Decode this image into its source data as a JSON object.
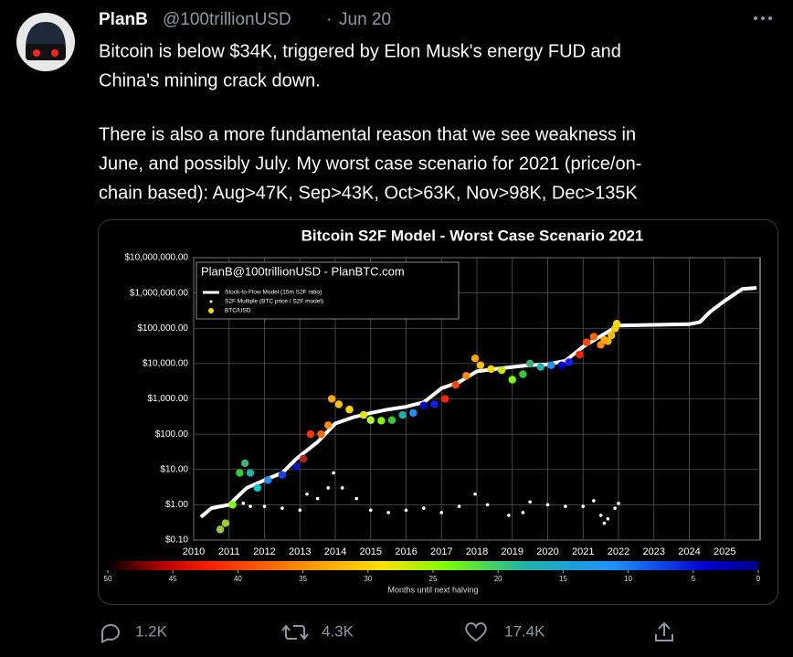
{
  "tweet": {
    "author": "PlanB",
    "handle": "@100trillionUSD",
    "separator": "·",
    "date": "Jun 20",
    "text_lines": [
      "Bitcoin is below $34K, triggered by Elon Musk's energy FUD and",
      "China's mining crack down.",
      "There is also a more fundamental reason that we see weakness in",
      "June, and possibly July. My worst case scenario for 2021 (price/on-",
      "chain based): Aug>47K, Sep>43K, Oct>63K, Nov>98K, Dec>135K"
    ],
    "replies": "1.2K",
    "retweets": "4.3K",
    "likes": "17.4K"
  },
  "chart": {
    "type": "scatter",
    "title": "Bitcoin S2F Model - Worst Case Scenario 2021",
    "watermark": "PlanB@100trillionUSD - PlanBTC.com",
    "log_y": true,
    "grid": true,
    "xlim": [
      2010,
      2026
    ],
    "xticks": [
      2010,
      2011,
      2012,
      2013,
      2014,
      2015,
      2016,
      2017,
      2018,
      2019,
      2020,
      2021,
      2022,
      2023,
      2024,
      2025
    ],
    "ylim": [
      0.1,
      10000000
    ],
    "yticks": [
      {
        "value": 0.1,
        "label": "$0.10"
      },
      {
        "value": 1,
        "label": "$1.00"
      },
      {
        "value": 10,
        "label": "$10.00"
      },
      {
        "value": 100,
        "label": "$100.00"
      },
      {
        "value": 1000,
        "label": "$1,000.00"
      },
      {
        "value": 10000,
        "label": "$10,000.00"
      },
      {
        "value": 100000,
        "label": "$100,000.00"
      },
      {
        "value": 1000000,
        "label": "$1,000,000.00"
      },
      {
        "value": 10000000,
        "label": "$10,000,000.00"
      }
    ],
    "series": [
      {
        "name": "Stock-to-Flow Model (15m S2F ratio)",
        "kind": "line",
        "color": "#ffffff",
        "x": [
          2010.2,
          2010.5,
          2011,
          2011.5,
          2012,
          2012.5,
          2012.9,
          2013.5,
          2014,
          2014.5,
          2015,
          2015.5,
          2016,
          2016.5,
          2017,
          2017.5,
          2018,
          2018.5,
          2019,
          2019.5,
          2020,
          2020.5,
          2021,
          2021.5,
          2022,
          2023,
          2024,
          2024.3,
          2024.6,
          2025,
          2025.5,
          2025.9
        ],
        "values": [
          0.45,
          0.8,
          1,
          3,
          5,
          8,
          20,
          60,
          200,
          300,
          400,
          500,
          600,
          800,
          2000,
          3000,
          6000,
          7000,
          8000,
          9000,
          9500,
          12000,
          30000,
          60000,
          120000,
          125000,
          130000,
          150000,
          300000,
          600000,
          1300000,
          1400000
        ]
      },
      {
        "name": "S2F Multiple (BTC price / S2F model)",
        "kind": "dots",
        "color": "#ffffff",
        "x": [
          2011.0,
          2011.4,
          2011.6,
          2012.0,
          2012.5,
          2013.0,
          2013.2,
          2013.5,
          2013.8,
          2013.95,
          2014.2,
          2014.6,
          2015.0,
          2015.5,
          2016.0,
          2016.5,
          2017.0,
          2017.5,
          2017.95,
          2018.3,
          2018.9,
          2019.3,
          2019.5,
          2020.0,
          2020.5,
          2021.0,
          2021.3,
          2021.5,
          2021.6,
          2021.7,
          2021.9,
          2022.0
        ],
        "values": [
          1,
          1.1,
          0.9,
          0.9,
          0.8,
          0.7,
          2,
          1.5,
          3,
          8,
          3,
          1.5,
          0.7,
          0.6,
          0.7,
          0.8,
          0.6,
          0.9,
          2,
          1,
          0.5,
          0.6,
          1.2,
          1,
          0.9,
          0.9,
          1.3,
          0.5,
          0.3,
          0.4,
          0.8,
          1.1
        ]
      },
      {
        "name": "BTC/USD",
        "kind": "dots",
        "color": "#ffd700",
        "x": [
          2010.75,
          2010.9,
          2011.1,
          2011.3,
          2011.45,
          2011.6,
          2011.8,
          2012.1,
          2012.5,
          2012.9,
          2013.1,
          2013.3,
          2013.6,
          2013.8,
          2013.9,
          2014.1,
          2014.4,
          2014.8,
          2015.0,
          2015.3,
          2015.6,
          2015.9,
          2016.2,
          2016.5,
          2016.8,
          2017.1,
          2017.4,
          2017.7,
          2017.95,
          2018.1,
          2018.4,
          2018.7,
          2019.0,
          2019.3,
          2019.5,
          2019.8,
          2020.1,
          2020.4,
          2020.6,
          2020.9,
          2021.1,
          2021.3,
          2021.5,
          2021.6,
          2021.7,
          2021.8,
          2021.9,
          2021.95
        ],
        "values": [
          0.2,
          0.3,
          1,
          8,
          15,
          8,
          3,
          5,
          7,
          12,
          20,
          100,
          100,
          180,
          1000,
          700,
          500,
          350,
          250,
          240,
          250,
          350,
          400,
          650,
          700,
          1000,
          2500,
          4500,
          14000,
          9000,
          7000,
          6500,
          3500,
          5000,
          10000,
          8000,
          9000,
          9000,
          11000,
          18000,
          40000,
          58000,
          34000,
          47000,
          43000,
          63000,
          98000,
          135000
        ],
        "colors": [
          "#9acd32",
          "#9acd32",
          "#7fff00",
          "#32cd32",
          "#3cb371",
          "#20b2aa",
          "#00ced1",
          "#1e90ff",
          "#1e3cff",
          "#1010c0",
          "#b22222",
          "#ff3300",
          "#ff6600",
          "#ff8c00",
          "#ffa500",
          "#ffc000",
          "#ffd700",
          "#e6e600",
          "#adff2f",
          "#7cfc00",
          "#32cd32",
          "#20b2aa",
          "#1e90ff",
          "#0000cd",
          "#1a1aff",
          "#ff2200",
          "#ff4500",
          "#ff8c00",
          "#ffa500",
          "#ffc000",
          "#ffd700",
          "#c8e600",
          "#7cfc00",
          "#32cd32",
          "#3cb371",
          "#20b2aa",
          "#1e90ff",
          "#0000cd",
          "#1a1aff",
          "#ff2200",
          "#ff4500",
          "#ff6600",
          "#ff8c00",
          "#ffa500",
          "#ffb000",
          "#ffc000",
          "#ffd000",
          "#ffd700"
        ]
      }
    ],
    "colorbar": {
      "label": "Months until next halving",
      "lim": [
        50,
        0
      ],
      "ticks": [
        50,
        45,
        40,
        35,
        30,
        25,
        20,
        15,
        10,
        5,
        0
      ]
    }
  }
}
